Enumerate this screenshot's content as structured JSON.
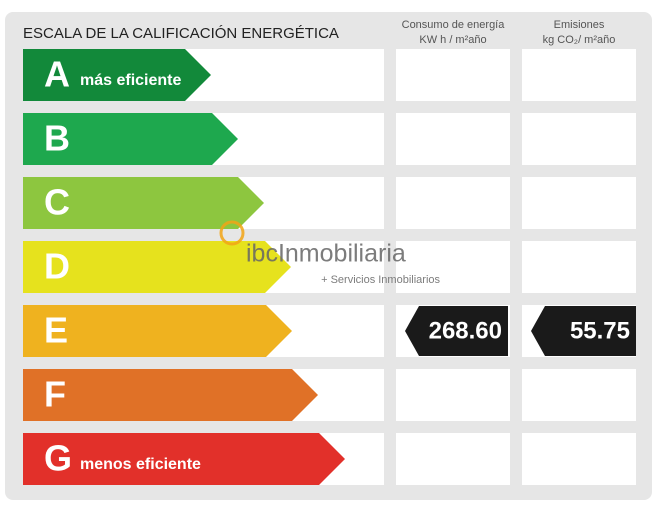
{
  "header": {
    "title": "ESCALA DE LA CALIFICACIÓN ENERGÉTICA",
    "columns": [
      {
        "title": "Consumo de energía",
        "unit": "KW h / m²año"
      },
      {
        "title": "Emisiones",
        "unit": "kg CO₂/ m²año"
      }
    ]
  },
  "rows": [
    {
      "letter": "A",
      "label": "más eficiente",
      "color": "#12893a"
    },
    {
      "letter": "B",
      "label": null,
      "color": "#1ea84e"
    },
    {
      "letter": "C",
      "label": null,
      "color": "#8dc63f"
    },
    {
      "letter": "D",
      "label": null,
      "color": "#e6e21d"
    },
    {
      "letter": "E",
      "label": null,
      "color": "#efb21f"
    },
    {
      "letter": "F",
      "label": null,
      "color": "#e07127"
    },
    {
      "letter": "G",
      "label": "menos eficiente",
      "color": "#e2302a"
    }
  ],
  "rating": {
    "row": 4,
    "consumption": "268.60",
    "emissions": "55.75"
  },
  "watermark": {
    "brand": "ibcInmobiliaria",
    "tagline": "+ Servicios Inmobiliarios"
  }
}
